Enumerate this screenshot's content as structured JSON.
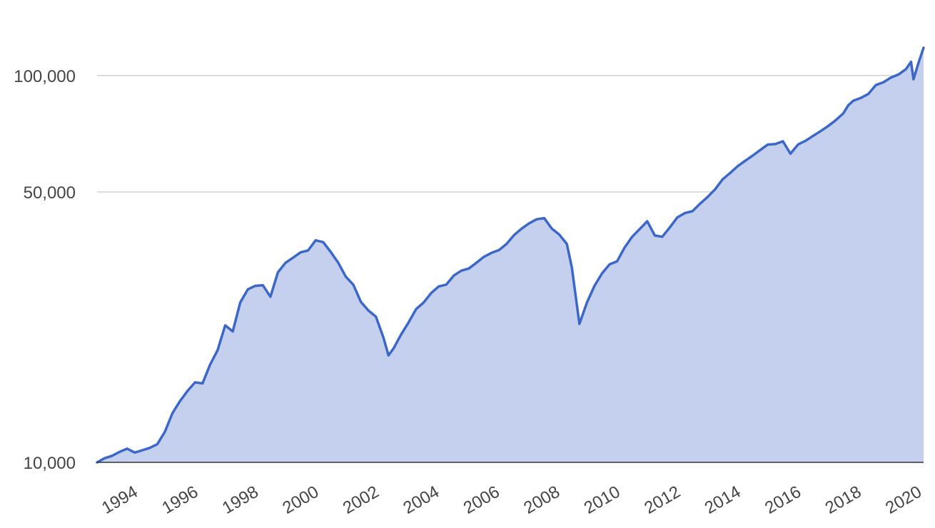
{
  "chart_data": {
    "type": "area",
    "title": "",
    "xlabel": "",
    "ylabel": "",
    "y_scale": "log",
    "ylim": [
      10000,
      138000
    ],
    "xlim": [
      "1993-02",
      "2020-07"
    ],
    "grid": true,
    "legend": "none",
    "line_color": "#3b67c8",
    "fill_color": "#c5d0ef",
    "y_ticks": [
      {
        "value": 10000,
        "label": "10,000"
      },
      {
        "value": 50000,
        "label": "50,000"
      },
      {
        "value": 100000,
        "label": "100,000"
      }
    ],
    "x_ticks": [
      {
        "value": "1994-01",
        "label": "1994"
      },
      {
        "value": "1996-01",
        "label": "1996"
      },
      {
        "value": "1998-01",
        "label": "1998"
      },
      {
        "value": "2000-01",
        "label": "2000"
      },
      {
        "value": "2002-01",
        "label": "2002"
      },
      {
        "value": "2004-01",
        "label": "2004"
      },
      {
        "value": "2006-01",
        "label": "2006"
      },
      {
        "value": "2008-01",
        "label": "2008"
      },
      {
        "value": "2010-01",
        "label": "2010"
      },
      {
        "value": "2012-01",
        "label": "2012"
      },
      {
        "value": "2014-01",
        "label": "2014"
      },
      {
        "value": "2016-01",
        "label": "2016"
      },
      {
        "value": "2018-01",
        "label": "2018"
      },
      {
        "value": "2020-01",
        "label": "2020"
      }
    ],
    "series": [
      {
        "x": [
          "1993-02",
          "1993-05",
          "1993-08",
          "1993-11",
          "1994-02",
          "1994-05",
          "1994-08",
          "1994-11",
          "1995-02",
          "1995-05",
          "1995-08",
          "1995-11",
          "1996-02",
          "1996-05",
          "1996-08",
          "1996-11",
          "1997-02",
          "1997-05",
          "1997-08",
          "1997-11",
          "1998-02",
          "1998-05",
          "1998-08",
          "1998-11",
          "1999-02",
          "1999-05",
          "1999-08",
          "1999-11",
          "2000-02",
          "2000-05",
          "2000-08",
          "2000-11",
          "2001-02",
          "2001-05",
          "2001-08",
          "2001-11",
          "2002-02",
          "2002-05",
          "2002-08",
          "2002-10",
          "2002-12",
          "2003-03",
          "2003-06",
          "2003-09",
          "2003-12",
          "2004-03",
          "2004-06",
          "2004-09",
          "2004-12",
          "2005-03",
          "2005-06",
          "2005-09",
          "2005-12",
          "2006-03",
          "2006-06",
          "2006-09",
          "2006-12",
          "2007-03",
          "2007-06",
          "2007-09",
          "2007-12",
          "2008-03",
          "2008-06",
          "2008-09",
          "2008-11",
          "2009-02",
          "2009-05",
          "2009-08",
          "2009-11",
          "2010-02",
          "2010-05",
          "2010-08",
          "2010-11",
          "2011-02",
          "2011-05",
          "2011-08",
          "2011-11",
          "2012-02",
          "2012-05",
          "2012-08",
          "2012-11",
          "2013-02",
          "2013-05",
          "2013-08",
          "2013-11",
          "2014-02",
          "2014-05",
          "2014-08",
          "2014-11",
          "2015-02",
          "2015-05",
          "2015-08",
          "2015-11",
          "2016-02",
          "2016-05",
          "2016-08",
          "2016-11",
          "2017-02",
          "2017-05",
          "2017-08",
          "2017-11",
          "2018-01",
          "2018-03",
          "2018-06",
          "2018-09",
          "2018-12",
          "2019-03",
          "2019-06",
          "2019-09",
          "2019-12",
          "2020-02",
          "2020-03",
          "2020-05",
          "2020-07"
        ],
        "values": [
          10000,
          10250,
          10400,
          10650,
          10850,
          10600,
          10750,
          10900,
          11150,
          12000,
          13400,
          14400,
          15300,
          16100,
          16000,
          17900,
          19500,
          22600,
          21800,
          25900,
          28000,
          28600,
          28700,
          26800,
          31000,
          32800,
          33800,
          34900,
          35300,
          37500,
          37100,
          35000,
          32800,
          30200,
          28800,
          26000,
          24700,
          23800,
          21000,
          18900,
          19700,
          21400,
          23000,
          24900,
          25900,
          27400,
          28500,
          28800,
          30400,
          31300,
          31700,
          32800,
          34000,
          34800,
          35400,
          36700,
          38700,
          40200,
          41500,
          42500,
          42800,
          40200,
          38800,
          36700,
          31900,
          22800,
          25900,
          28600,
          30800,
          32500,
          33100,
          35900,
          38300,
          40100,
          42000,
          38600,
          38300,
          40500,
          43000,
          44100,
          44600,
          46600,
          48500,
          50800,
          53900,
          56000,
          58300,
          60200,
          62100,
          64200,
          66300,
          66500,
          67600,
          62800,
          66300,
          67800,
          69800,
          71800,
          74000,
          76600,
          79800,
          83700,
          86000,
          87500,
          89600,
          94500,
          96000,
          98800,
          100600,
          103900,
          108500,
          97800,
          108000,
          118000
        ]
      }
    ]
  }
}
